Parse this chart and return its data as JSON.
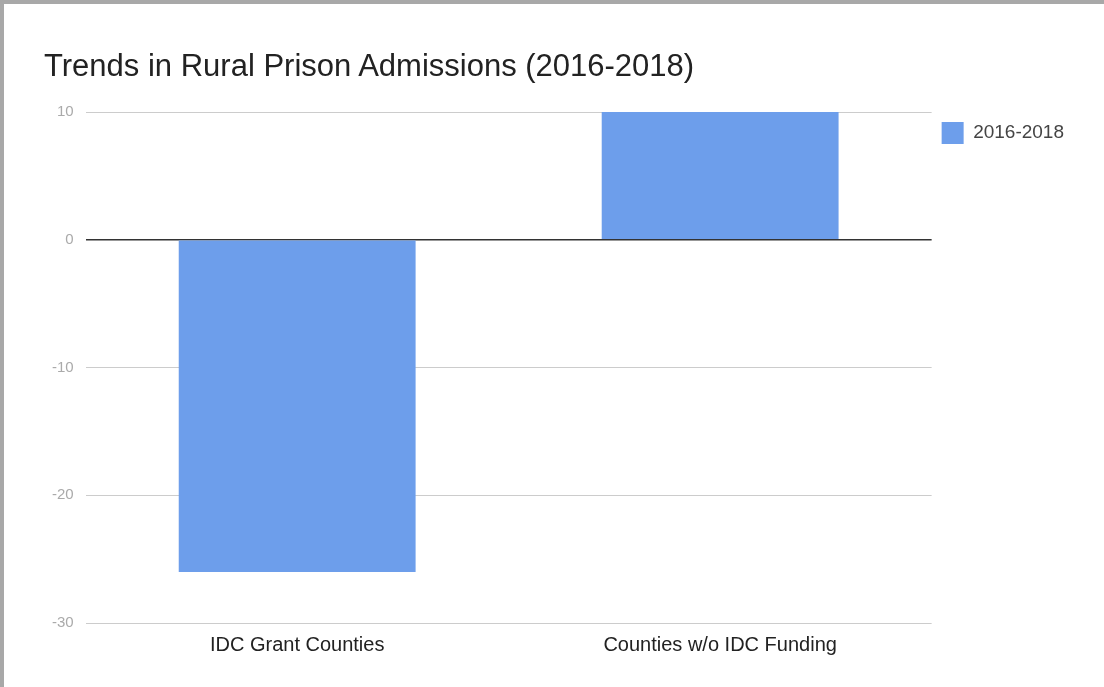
{
  "chart_data": {
    "type": "bar",
    "title": "Trends in Rural Prison Admissions (2016-2018)",
    "categories": [
      "IDC Grant Counties",
      "Counties w/o IDC Funding"
    ],
    "series": [
      {
        "name": "2016-2018",
        "color": "#6d9eeb",
        "values": [
          -26,
          10
        ]
      }
    ],
    "ylim": [
      -30,
      10
    ],
    "yticks": [
      -30,
      -20,
      -10,
      0,
      10
    ],
    "grid": "y",
    "legend": "top right"
  }
}
